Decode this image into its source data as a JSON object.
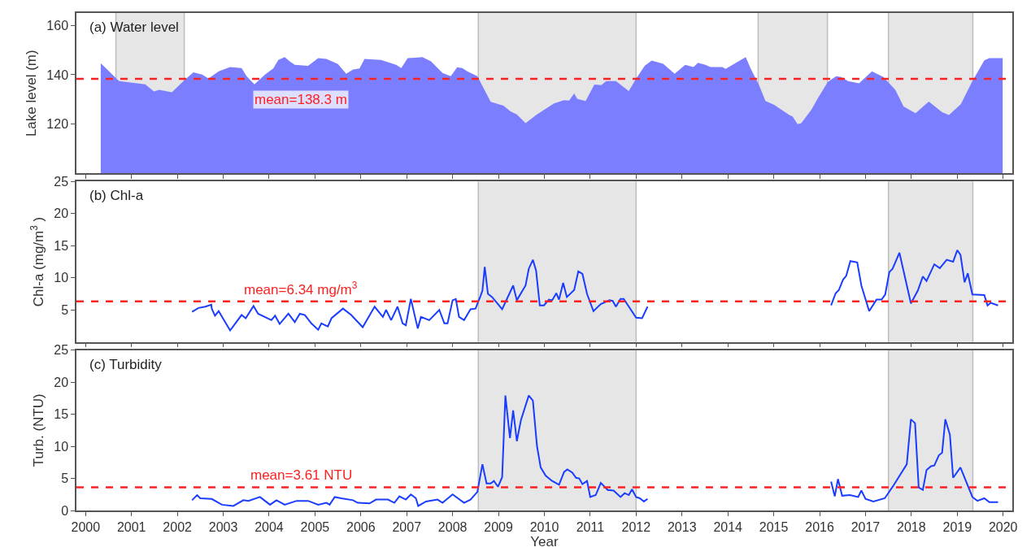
{
  "chart_data": [
    {
      "type": "area",
      "title": "(a) Water level",
      "ylabel": "Lake level (m)",
      "tick_labels": "y",
      "xlim": [
        1999.8,
        2020.2
      ],
      "xticks": [
        2000,
        2001,
        2002,
        2003,
        2004,
        2005,
        2006,
        2007,
        2008,
        2009,
        2010,
        2011,
        2012,
        2013,
        2014,
        2015,
        2016,
        2017,
        2018,
        2019,
        2020
      ],
      "ylim": [
        100,
        165
      ],
      "yticks": [
        120,
        140,
        160
      ],
      "series": [
        {
          "color": "#7b7fff",
          "x": [
            2000.33,
            2000.62,
            2000.73,
            2001.3,
            2001.49,
            2001.6,
            2001.88,
            2002.17,
            2002.35,
            2002.54,
            2002.68,
            2002.9,
            2003.15,
            2003.4,
            2003.51,
            2003.68,
            2003.91,
            2004.09,
            2004.2,
            2004.34,
            2004.45,
            2004.56,
            2004.85,
            2005.07,
            2005.25,
            2005.5,
            2005.68,
            2005.83,
            2005.97,
            2006.08,
            2006.44,
            2006.77,
            2006.88,
            2007.02,
            2007.34,
            2007.53,
            2007.78,
            2007.96,
            2008.1,
            2008.21,
            2008.32,
            2008.54,
            2008.83,
            2009.11,
            2009.26,
            2009.4,
            2009.59,
            2009.84,
            2010.21,
            2010.43,
            2010.54,
            2010.65,
            2010.72,
            2010.9,
            2011.09,
            2011.24,
            2011.35,
            2011.56,
            2011.84,
            2012.0,
            2012.19,
            2012.34,
            2012.59,
            2012.84,
            2013.07,
            2013.25,
            2013.35,
            2013.51,
            2013.62,
            2013.88,
            2013.95,
            2014.39,
            2014.5,
            2014.68,
            2014.82,
            2015.01,
            2015.34,
            2015.41,
            2015.52,
            2015.6,
            2015.82,
            2015.96,
            2016.18,
            2016.36,
            2016.47,
            2016.62,
            2016.86,
            2017.14,
            2017.39,
            2017.65,
            2017.83,
            2018.09,
            2018.38,
            2018.67,
            2018.82,
            2019.08,
            2019.33,
            2019.59,
            2019.7,
            2019.99
          ],
          "values": [
            144.7,
            139.4,
            137.4,
            136.1,
            133.2,
            133.9,
            132.9,
            138.1,
            141.0,
            140.1,
            138.5,
            141.4,
            143.1,
            142.7,
            139.4,
            136.1,
            140.1,
            142.5,
            146.0,
            147.1,
            145.4,
            144.0,
            143.6,
            146.7,
            146.4,
            144.3,
            140.4,
            142.1,
            142.5,
            146.4,
            146.0,
            144.0,
            142.7,
            146.7,
            147.1,
            145.4,
            140.7,
            139.4,
            143.0,
            142.7,
            141.4,
            139.4,
            129.0,
            127.5,
            125.2,
            123.9,
            120.4,
            123.9,
            128.4,
            129.7,
            129.5,
            132.4,
            130.2,
            129.4,
            136.0,
            135.8,
            137.4,
            137.4,
            133.4,
            138.4,
            143.7,
            145.7,
            144.4,
            140.4,
            144.0,
            143.1,
            144.8,
            144.0,
            143.1,
            143.1,
            142.4,
            147.1,
            142.4,
            135.8,
            129.4,
            127.8,
            123.7,
            123.1,
            120.0,
            120.4,
            125.8,
            130.4,
            137.1,
            139.4,
            139.1,
            137.4,
            136.5,
            141.4,
            139.1,
            133.9,
            127.1,
            124.4,
            129.1,
            124.8,
            123.7,
            128.1,
            137.4,
            145.8,
            146.7,
            146.7
          ]
        }
      ],
      "ref_lines": [
        {
          "axis": "y",
          "value": 138.3,
          "label": "mean=138.3 m",
          "color": "#ff2020",
          "line_style": "dashed"
        }
      ],
      "bands": [
        {
          "axis": "x",
          "from": 2000.66,
          "to": 2002.15,
          "color": "#e6e6e6"
        },
        {
          "axis": "x",
          "from": 2008.56,
          "to": 2012.0,
          "color": "#e6e6e6"
        },
        {
          "axis": "x",
          "from": 2014.66,
          "to": 2016.17,
          "color": "#e6e6e6"
        },
        {
          "axis": "x",
          "from": 2017.5,
          "to": 2019.34,
          "color": "#e6e6e6"
        }
      ]
    },
    {
      "type": "line",
      "title": "(b) Chl-a",
      "ylabel": "Chl-a (mg/m$^{3}$ )",
      "tick_labels": "y",
      "xlim": [
        1999.8,
        2020.2
      ],
      "xticks": [
        2000,
        2001,
        2002,
        2003,
        2004,
        2005,
        2006,
        2007,
        2008,
        2009,
        2010,
        2011,
        2012,
        2013,
        2014,
        2015,
        2016,
        2017,
        2018,
        2019,
        2020
      ],
      "ylim": [
        0,
        25
      ],
      "yticks": [
        5,
        10,
        15,
        20,
        25
      ],
      "series": [
        {
          "color": "#1a3cff",
          "x": [
            2002.32,
            2002.46,
            2002.61,
            2002.74,
            2002.75,
            2002.82,
            2002.9,
            2003.15,
            2003.4,
            2003.49,
            2003.66,
            2003.76,
            2004.05,
            2004.13,
            2004.23,
            2004.42,
            2004.56,
            2004.67,
            2004.78,
            2004.92,
            2005.07,
            2005.14,
            2005.28,
            2005.36,
            2005.61,
            2005.79,
            2006.04,
            2006.3,
            2006.48,
            2006.55,
            2006.66,
            2006.8,
            2006.91,
            2006.98,
            2007.09,
            2007.24,
            2007.31,
            2007.49,
            2007.71,
            2007.82,
            2007.89,
            2008.0,
            2008.07,
            2008.14,
            2008.25,
            2008.39,
            2008.5,
            2008.61,
            2008.65,
            2008.7,
            2008.77,
            2008.86,
            2009.08,
            2009.32,
            2009.4,
            2009.59,
            2009.66,
            2009.75,
            2009.82,
            2009.9,
            2009.99,
            2010.1,
            2010.17,
            2010.26,
            2010.32,
            2010.41,
            2010.49,
            2010.65,
            2010.74,
            2010.83,
            2010.93,
            2011.07,
            2011.23,
            2011.42,
            2011.49,
            2011.56,
            2011.66,
            2011.73,
            2012.0,
            2012.13,
            2012.25,
            2014.0,
            2016.25,
            2016.35,
            2016.42,
            2016.51,
            2016.58,
            2016.67,
            2016.82,
            2016.91,
            2017.08,
            2017.24,
            2017.35,
            2017.43,
            2017.52,
            2017.59,
            2017.74,
            2017.99,
            2018.14,
            2018.25,
            2018.33,
            2018.5,
            2018.62,
            2018.77,
            2018.91,
            2019.0,
            2019.07,
            2019.16,
            2019.23,
            2019.33,
            2019.59,
            2019.66,
            2019.73,
            2019.89
          ],
          "values": [
            4.7,
            5.3,
            5.5,
            5.8,
            5.2,
            4.1,
            4.8,
            1.8,
            4.2,
            3.7,
            5.6,
            4.4,
            3.4,
            4.1,
            2.8,
            4.4,
            3.1,
            4.4,
            4.2,
            2.9,
            1.9,
            2.9,
            2.4,
            3.7,
            5.2,
            4.2,
            2.3,
            5.5,
            3.9,
            5.0,
            3.4,
            5.5,
            2.9,
            2.6,
            6.7,
            2.1,
            3.9,
            3.4,
            5.0,
            2.9,
            2.9,
            6.5,
            6.7,
            3.9,
            3.4,
            5.1,
            5.2,
            7.2,
            8.0,
            11.7,
            7.5,
            7.0,
            5.1,
            8.8,
            6.5,
            8.8,
            11.4,
            12.8,
            11.1,
            5.7,
            5.7,
            6.6,
            6.5,
            7.6,
            6.6,
            9.2,
            7.0,
            8.1,
            11.0,
            10.6,
            7.5,
            4.8,
            5.9,
            6.5,
            6.4,
            5.5,
            6.7,
            6.7,
            3.8,
            3.7,
            5.5,
            null,
            5.7,
            7.6,
            8.1,
            9.7,
            10.3,
            12.6,
            12.4,
            8.8,
            4.8,
            6.6,
            6.6,
            7.4,
            10.9,
            11.4,
            13.9,
            6.0,
            8.0,
            10.2,
            9.5,
            12.1,
            11.5,
            12.8,
            12.5,
            14.3,
            13.6,
            9.3,
            10.7,
            7.4,
            7.3,
            5.7,
            6.1,
            5.7
          ]
        }
      ],
      "ref_lines": [
        {
          "axis": "y",
          "value": 6.34,
          "label": "mean=6.34 mg/m$^{3}$",
          "color": "#ff2020",
          "line_style": "dashed"
        }
      ],
      "bands": [
        {
          "axis": "x",
          "from": 2008.56,
          "to": 2012.0,
          "color": "#e6e6e6"
        },
        {
          "axis": "x",
          "from": 2017.5,
          "to": 2019.34,
          "color": "#e6e6e6"
        }
      ]
    },
    {
      "type": "line",
      "title": "(c) Turbidity",
      "xlabel": "Year",
      "ylabel": "Turb. (NTU)",
      "xlim": [
        1999.8,
        2020.2
      ],
      "xticks": [
        2000,
        2001,
        2002,
        2003,
        2004,
        2005,
        2006,
        2007,
        2008,
        2009,
        2010,
        2011,
        2012,
        2013,
        2014,
        2015,
        2016,
        2017,
        2018,
        2019,
        2020
      ],
      "ylim": [
        0,
        25
      ],
      "yticks": [
        0,
        5,
        10,
        15,
        20,
        25
      ],
      "series": [
        {
          "color": "#1a3cff",
          "x": [
            2002.32,
            2002.43,
            2002.5,
            2002.75,
            2002.97,
            2003.22,
            2003.44,
            2003.55,
            2003.8,
            2004.02,
            2004.16,
            2004.34,
            2004.6,
            2004.85,
            2005.07,
            2005.25,
            2005.32,
            2005.43,
            2005.57,
            2005.83,
            2005.93,
            2006.19,
            2006.33,
            2006.59,
            2006.73,
            2006.84,
            2006.98,
            2007.09,
            2007.2,
            2007.25,
            2007.42,
            2007.67,
            2007.78,
            2008.0,
            2008.25,
            2008.39,
            2008.54,
            2008.65,
            2008.74,
            2008.83,
            2008.9,
            2008.99,
            2009.08,
            2009.15,
            2009.25,
            2009.32,
            2009.4,
            2009.49,
            2009.66,
            2009.75,
            2009.84,
            2009.92,
            2010.03,
            2010.17,
            2010.32,
            2010.43,
            2010.5,
            2010.61,
            2010.69,
            2010.76,
            2010.83,
            2010.93,
            2011.0,
            2011.12,
            2011.23,
            2011.38,
            2011.51,
            2011.66,
            2011.75,
            2011.84,
            2011.91,
            2012.0,
            2012.08,
            2012.17,
            2012.25,
            2014.0,
            2016.25,
            2016.33,
            2016.4,
            2016.49,
            2016.66,
            2016.84,
            2016.91,
            2017.0,
            2017.17,
            2017.42,
            2017.61,
            2017.9,
            2017.99,
            2018.08,
            2018.16,
            2018.25,
            2018.33,
            2018.43,
            2018.5,
            2018.6,
            2018.67,
            2018.74,
            2018.84,
            2018.91,
            2019.07,
            2019.33,
            2019.44,
            2019.59,
            2019.7,
            2019.89
          ],
          "values": [
            1.6,
            2.4,
            1.9,
            1.8,
            0.9,
            0.7,
            1.6,
            1.5,
            2.1,
            0.9,
            1.6,
            0.9,
            1.5,
            1.5,
            0.9,
            1.2,
            0.9,
            2.1,
            1.9,
            1.6,
            1.2,
            1.1,
            1.7,
            1.7,
            1.2,
            2.2,
            1.7,
            2.5,
            1.9,
            0.7,
            1.4,
            1.7,
            1.2,
            2.5,
            1.2,
            1.7,
            2.9,
            7.2,
            4.2,
            4.2,
            4.6,
            3.7,
            5.2,
            17.9,
            11.3,
            15.6,
            10.8,
            14.1,
            17.9,
            17.1,
            10.0,
            6.7,
            5.4,
            4.6,
            4.0,
            6.0,
            6.4,
            5.9,
            5.1,
            5.0,
            4.1,
            4.6,
            2.1,
            2.4,
            4.3,
            3.2,
            3.1,
            2.1,
            2.7,
            2.4,
            3.3,
            2.1,
            1.9,
            1.4,
            1.8,
            null,
            4.5,
            2.2,
            4.9,
            2.3,
            2.4,
            2.1,
            3.1,
            1.8,
            1.4,
            1.9,
            3.9,
            7.2,
            14.2,
            13.6,
            3.6,
            3.2,
            6.3,
            6.9,
            7.0,
            8.6,
            9.0,
            14.2,
            11.8,
            5.1,
            6.7,
            2.1,
            1.5,
            1.9,
            1.3,
            1.3
          ]
        }
      ],
      "ref_lines": [
        {
          "axis": "y",
          "value": 3.61,
          "label": "mean=3.61 NTU",
          "color": "#ff2020",
          "line_style": "dashed"
        }
      ],
      "bands": [
        {
          "axis": "x",
          "from": 2008.56,
          "to": 2012.0,
          "color": "#e6e6e6"
        },
        {
          "axis": "x",
          "from": 2017.5,
          "to": 2019.34,
          "color": "#e6e6e6"
        }
      ]
    }
  ]
}
